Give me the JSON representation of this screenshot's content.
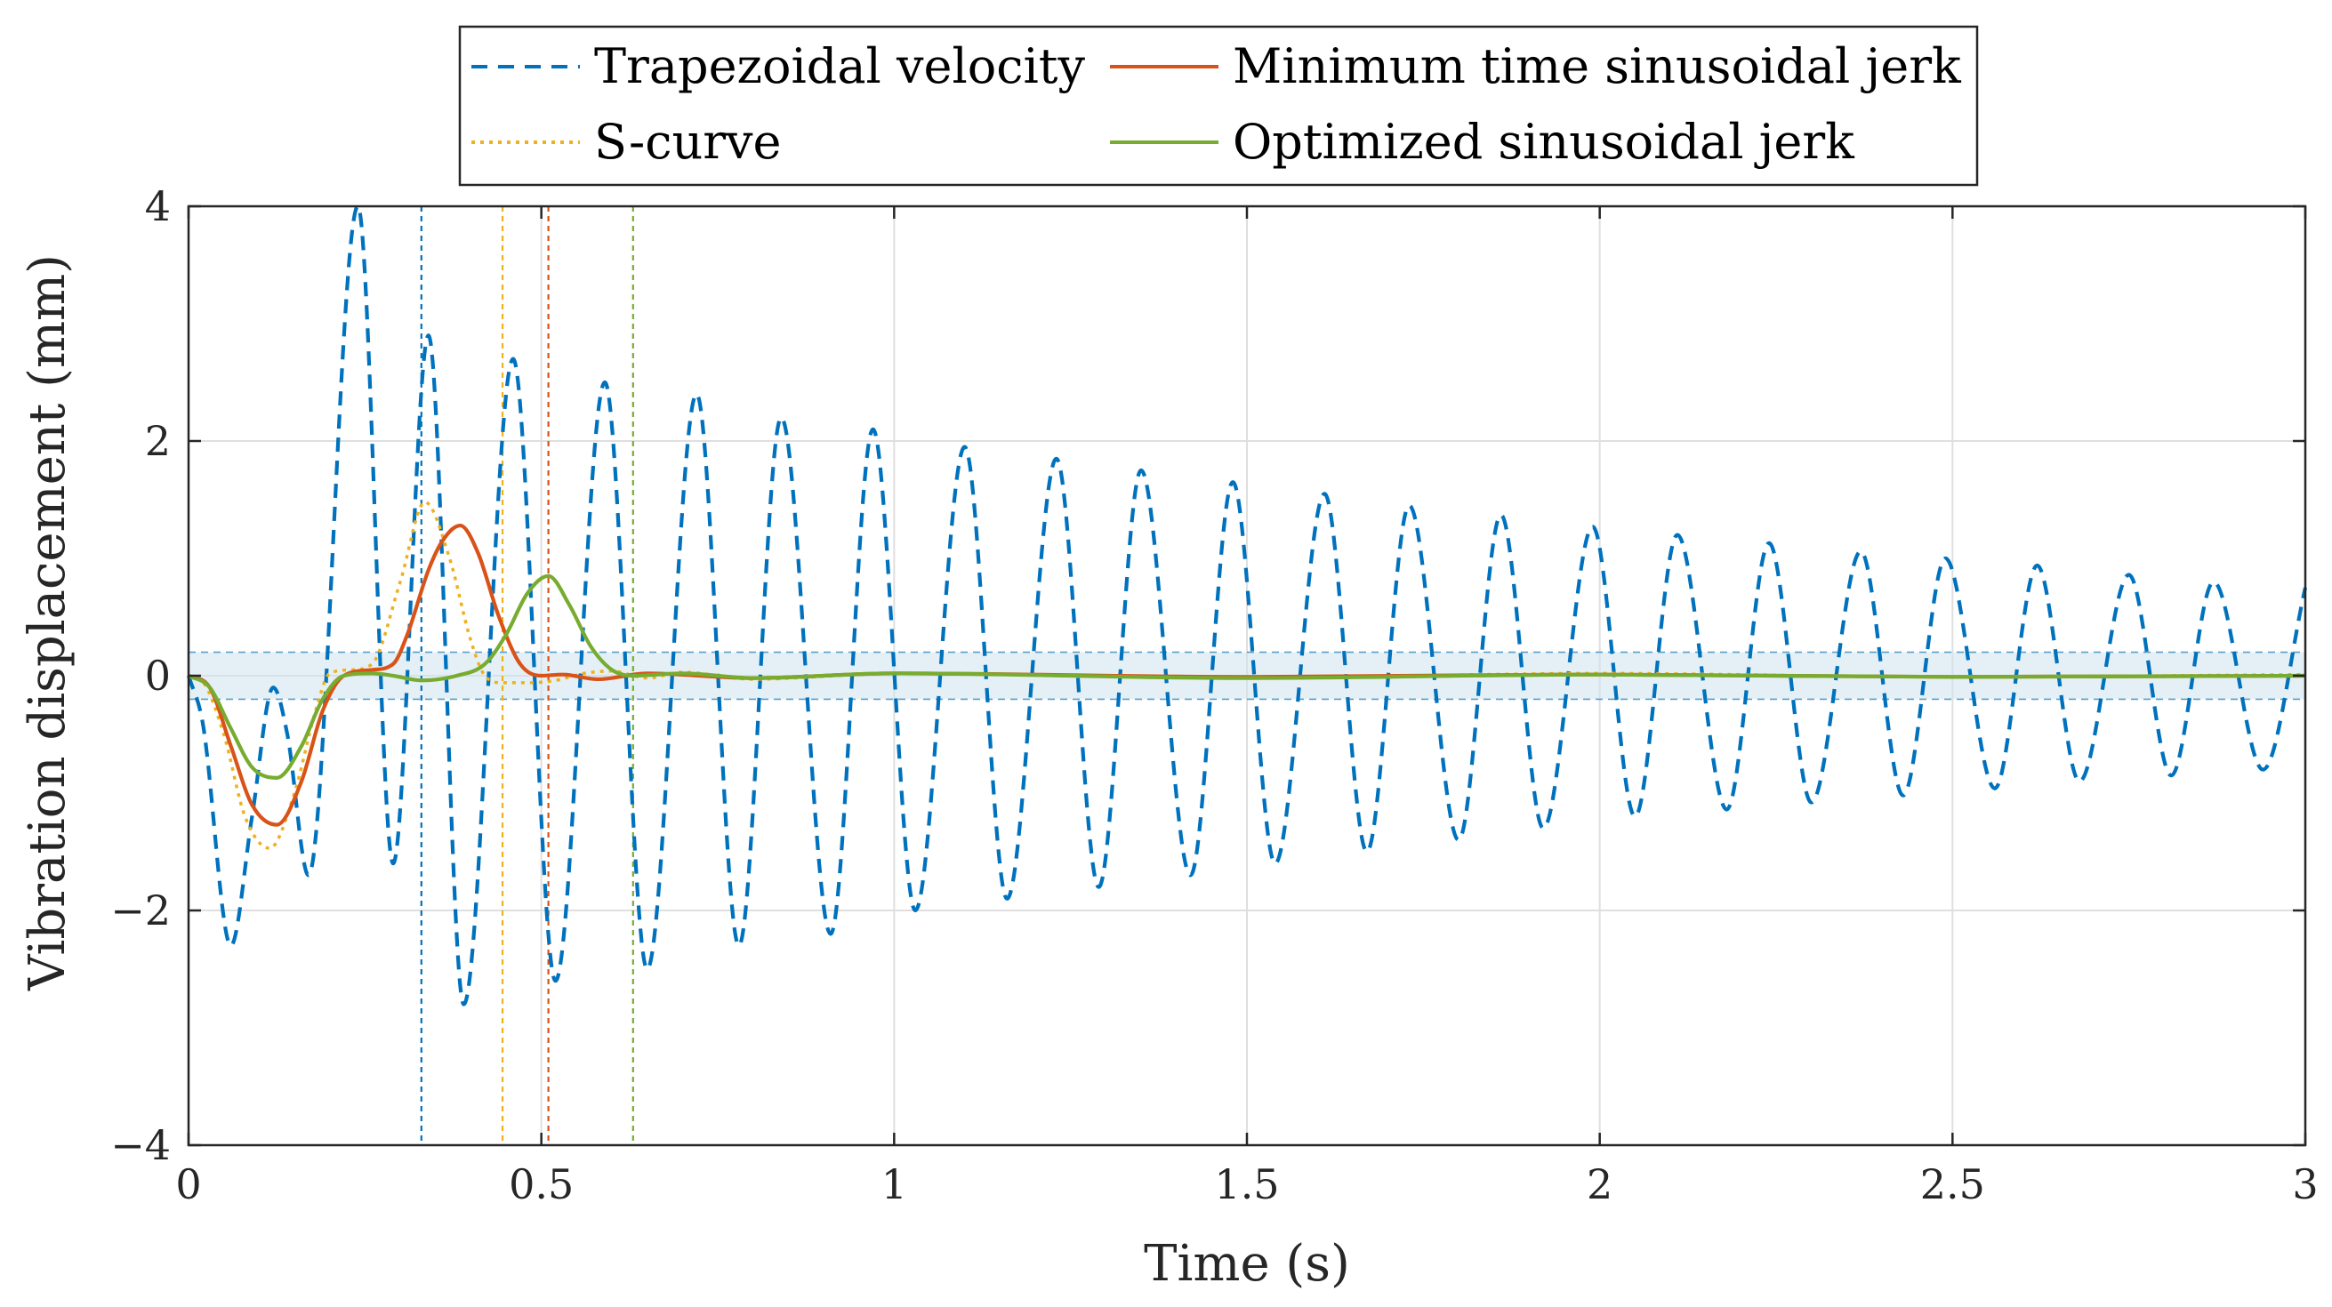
{
  "chart_data": {
    "type": "line",
    "title": "",
    "xlabel": "Time (s)",
    "ylabel": "Vibration displacement (mm)",
    "xlim": [
      0,
      3
    ],
    "ylim": [
      -4,
      4
    ],
    "xticks": [
      0,
      0.5,
      1,
      1.5,
      2,
      2.5,
      3
    ],
    "xtick_labels": [
      "0",
      "0.5",
      "1",
      "1.5",
      "2",
      "2.5",
      "3"
    ],
    "yticks": [
      -4,
      -2,
      0,
      2,
      4
    ],
    "ytick_labels": [
      "−4",
      "−2",
      "0",
      "2",
      "4"
    ],
    "grid": true,
    "legend_position": "top-center (outside)",
    "tolerance_band": [
      -0.2,
      0.2
    ],
    "series": [
      {
        "name": "Trapezoidal velocity",
        "color": "#0072BD",
        "style": "dashed",
        "end_time": 0.33,
        "x": [
          0,
          0.02,
          0.06,
          0.09,
          0.12,
          0.14,
          0.17,
          0.24,
          0.29,
          0.34,
          0.39,
          0.46,
          0.52,
          0.59,
          0.65,
          0.72,
          0.78,
          0.84,
          0.91,
          0.97,
          1.03,
          1.1,
          1.16,
          1.23,
          1.29,
          1.35,
          1.42,
          1.48,
          1.54,
          1.61,
          1.67,
          1.73,
          1.8,
          1.86,
          1.92,
          1.99,
          2.05,
          2.11,
          2.18,
          2.24,
          2.3,
          2.37,
          2.43,
          2.49,
          2.56,
          2.62,
          2.68,
          2.75,
          2.81,
          2.87,
          2.94,
          3.0
        ],
        "values": [
          0,
          -0.4,
          -2.3,
          -1.2,
          -0.1,
          -0.5,
          -1.7,
          4.0,
          -1.6,
          2.9,
          -2.8,
          2.7,
          -2.6,
          2.5,
          -2.5,
          2.4,
          -2.3,
          2.2,
          -2.2,
          2.1,
          -2.0,
          1.95,
          -1.9,
          1.85,
          -1.8,
          1.75,
          -1.7,
          1.65,
          -1.6,
          1.55,
          -1.5,
          1.45,
          -1.4,
          1.37,
          -1.3,
          1.27,
          -1.2,
          1.2,
          -1.14,
          1.13,
          -1.08,
          1.06,
          -1.02,
          1.0,
          -0.96,
          0.94,
          -0.9,
          0.86,
          -0.85,
          0.8,
          -0.8,
          0.75
        ]
      },
      {
        "name": "S-curve",
        "color": "#EDB120",
        "style": "dotted",
        "end_time": 0.445,
        "x": [
          0,
          0.02,
          0.05,
          0.08,
          0.115,
          0.15,
          0.18,
          0.2,
          0.23,
          0.26,
          0.3,
          0.335,
          0.37,
          0.4,
          0.42,
          0.445,
          0.48,
          0.52,
          0.56,
          0.6,
          0.65,
          0.7,
          0.8,
          1.0,
          1.5,
          2.0,
          2.5,
          3.0
        ],
        "values": [
          0,
          -0.05,
          -0.5,
          -1.2,
          -1.47,
          -1.0,
          -0.3,
          0.02,
          0.05,
          0.1,
          0.8,
          1.48,
          1.0,
          0.3,
          0.0,
          -0.06,
          -0.06,
          -0.04,
          0.02,
          0.04,
          -0.02,
          0.03,
          -0.03,
          0.02,
          -0.02,
          0.02,
          -0.01,
          0.01
        ]
      },
      {
        "name": "Minimum time sinusoidal jerk",
        "color": "#D95319",
        "style": "solid",
        "end_time": 0.51,
        "x": [
          0,
          0.03,
          0.06,
          0.09,
          0.125,
          0.16,
          0.19,
          0.22,
          0.26,
          0.29,
          0.31,
          0.34,
          0.36,
          0.385,
          0.41,
          0.44,
          0.47,
          0.5,
          0.53,
          0.58,
          0.65,
          0.8,
          1.0,
          1.5,
          2.0,
          2.5,
          3.0
        ],
        "values": [
          0,
          -0.1,
          -0.6,
          -1.1,
          -1.27,
          -0.9,
          -0.3,
          0.0,
          0.05,
          0.1,
          0.35,
          0.9,
          1.15,
          1.28,
          1.05,
          0.5,
          0.1,
          0.0,
          0.01,
          -0.03,
          0.02,
          -0.02,
          0.02,
          -0.01,
          0.01,
          -0.01,
          0.0
        ]
      },
      {
        "name": "Optimized sinusoidal jerk",
        "color": "#77AC30",
        "style": "solid",
        "end_time": 0.63,
        "x": [
          0,
          0.03,
          0.06,
          0.09,
          0.125,
          0.16,
          0.19,
          0.22,
          0.26,
          0.29,
          0.33,
          0.38,
          0.42,
          0.45,
          0.48,
          0.51,
          0.54,
          0.57,
          0.6,
          0.63,
          0.7,
          0.8,
          1.0,
          1.5,
          2.0,
          2.5,
          3.0
        ],
        "values": [
          0,
          -0.1,
          -0.45,
          -0.78,
          -0.87,
          -0.6,
          -0.2,
          0.0,
          0.02,
          0.0,
          -0.04,
          0.0,
          0.1,
          0.35,
          0.7,
          0.85,
          0.6,
          0.25,
          0.05,
          0.0,
          0.02,
          -0.02,
          0.02,
          -0.02,
          0.01,
          -0.01,
          0.0
        ]
      }
    ]
  }
}
